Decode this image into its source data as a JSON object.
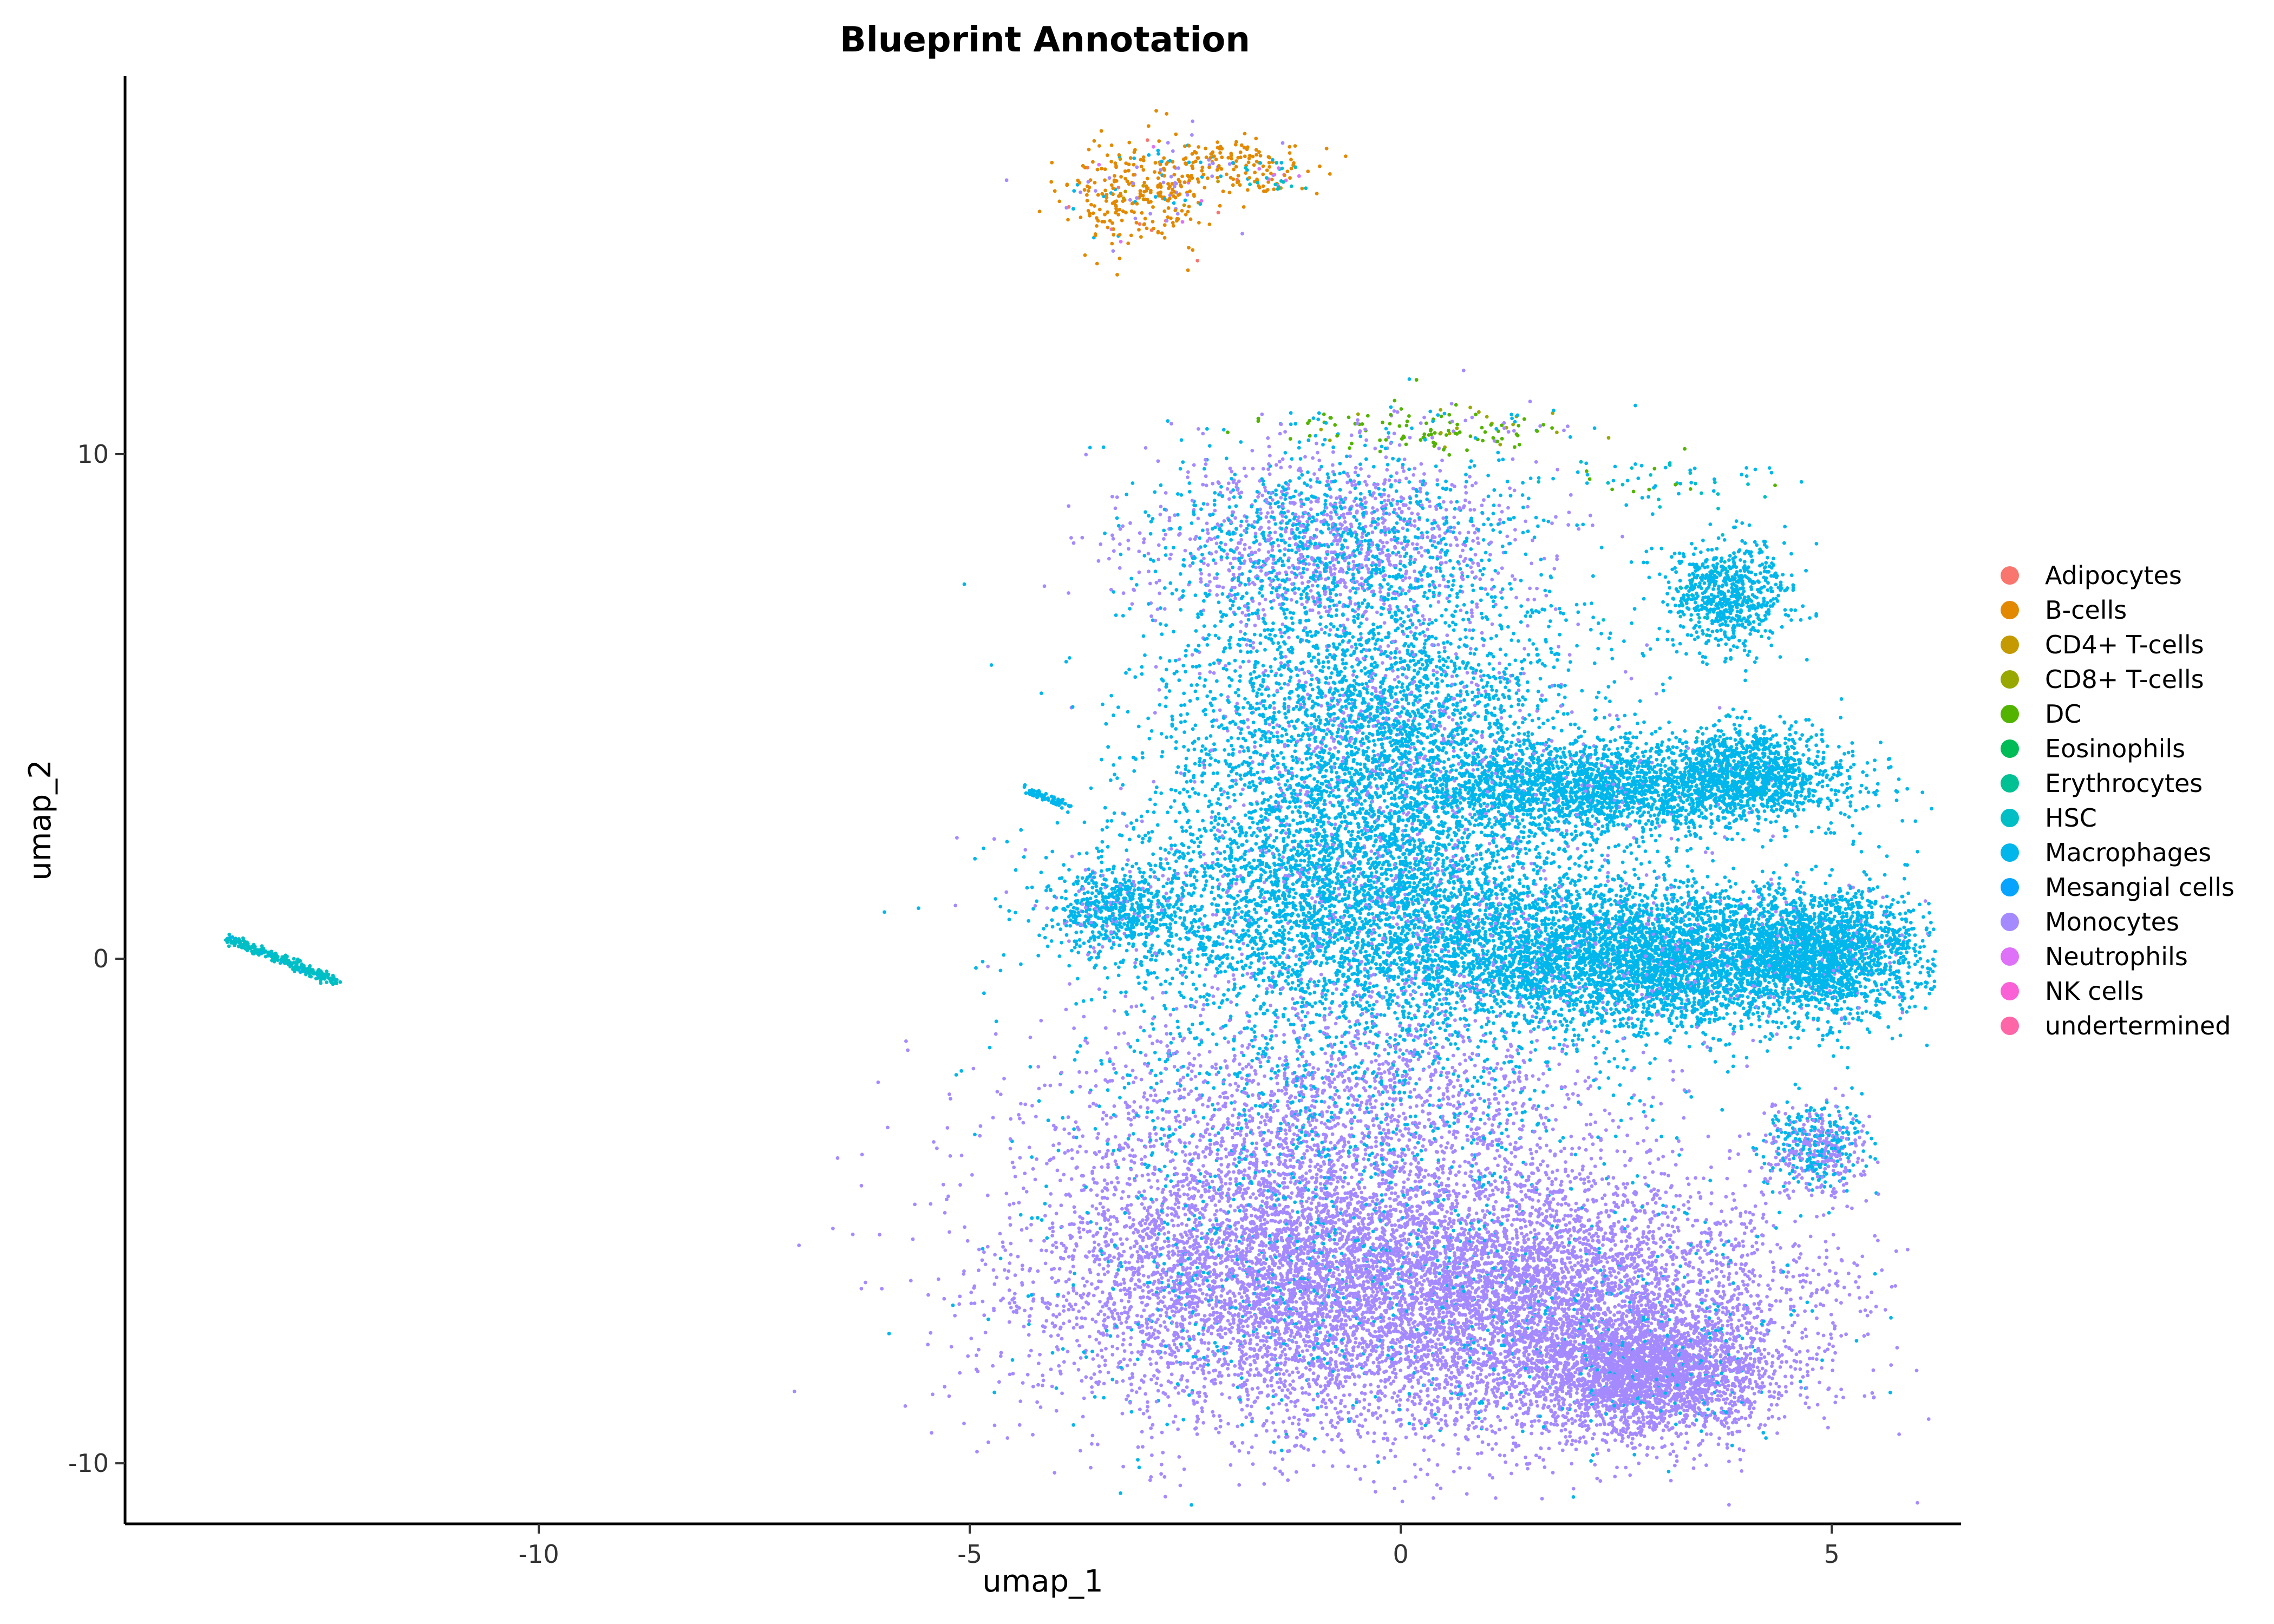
{
  "chart_data": {
    "type": "scatter",
    "title": "Blueprint Annotation",
    "xlabel": "umap_1",
    "ylabel": "umap_2",
    "xlim": [
      -14.8,
      6.5
    ],
    "ylim": [
      -11.2,
      17.5
    ],
    "x_ticks": [
      -10,
      -5,
      0,
      5
    ],
    "y_ticks": [
      -10,
      0,
      10
    ],
    "grid": false,
    "legend_position": "right",
    "series": [
      {
        "name": "Adipocytes",
        "color": "#F8766D",
        "approx_points": 6
      },
      {
        "name": "B-cells",
        "color": "#E38900",
        "approx_points": 420
      },
      {
        "name": "CD4+ T-cells",
        "color": "#C49A00",
        "approx_points": 20
      },
      {
        "name": "CD8+ T-cells",
        "color": "#99A800",
        "approx_points": 25
      },
      {
        "name": "DC",
        "color": "#53B400",
        "approx_points": 110
      },
      {
        "name": "Eosinophils",
        "color": "#00BC56",
        "approx_points": 6
      },
      {
        "name": "Erythrocytes",
        "color": "#00C094",
        "approx_points": 10
      },
      {
        "name": "HSC",
        "color": "#00BFC4",
        "approx_points": 320
      },
      {
        "name": "Macrophages",
        "color": "#00B6EB",
        "approx_points": 16000
      },
      {
        "name": "Mesangial cells",
        "color": "#06A4FF",
        "approx_points": 30
      },
      {
        "name": "Monocytes",
        "color": "#A58AFF",
        "approx_points": 19000
      },
      {
        "name": "Neutrophils",
        "color": "#DF70F8",
        "approx_points": 20
      },
      {
        "name": "NK cells",
        "color": "#FB61D7",
        "approx_points": 6
      },
      {
        "name": "undertermined",
        "color": "#FF66A8",
        "approx_points": 6
      }
    ]
  }
}
